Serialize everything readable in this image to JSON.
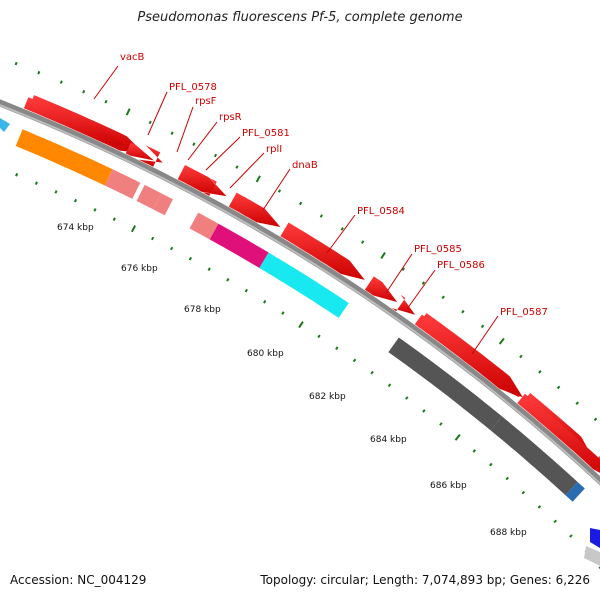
{
  "title": "Pseudomonas fluorescens Pf-5, complete genome",
  "accession": "Accession: NC_004129",
  "topology": "Topology: circular; Length: 7,074,893 bp; Genes: 6,226",
  "colors": {
    "feature_red": "#ee0000",
    "cds_orange": "#ff8800",
    "cds_pink": "#f08080",
    "cds_magenta": "#e0107a",
    "cds_cyan": "#18e8f0",
    "cds_gray": "#555555",
    "cds_blue": "#2a6cb0",
    "tick_green": "#1a7a1a",
    "label_red": "#cc0000",
    "backbone_gray": "#888888"
  },
  "scale_labels": [
    "674 kbp",
    "676 kbp",
    "678 kbp",
    "680 kbp",
    "682 kbp",
    "684 kbp",
    "686 kbp",
    "688 kbp"
  ],
  "gene_labels": [
    "vacB",
    "PFL_0578",
    "rpsF",
    "rpsR",
    "PFL_0581",
    "rplI",
    "dnaB",
    "PFL_0584",
    "PFL_0585",
    "PFL_0586",
    "PFL_0587"
  ]
}
